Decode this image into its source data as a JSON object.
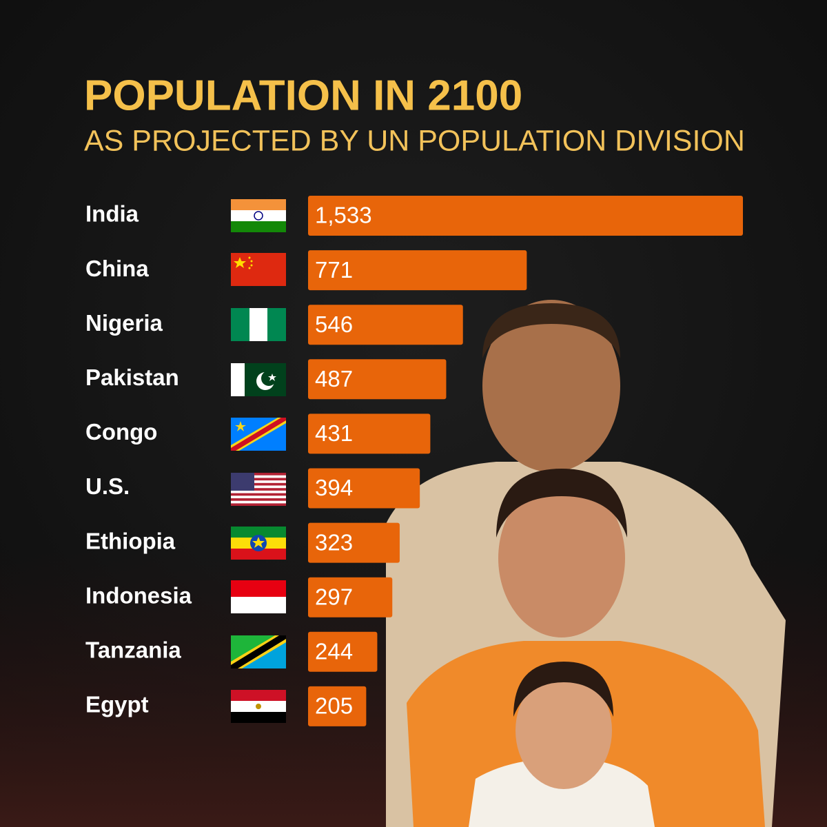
{
  "chart_data": {
    "type": "bar",
    "orientation": "horizontal",
    "title": "POPULATION IN 2100",
    "subtitle": "AS PROJECTED BY UN POPULATION DIVISION",
    "categories": [
      "India",
      "China",
      "Nigeria",
      "Pakistan",
      "Congo",
      "U.S.",
      "Ethiopia",
      "Indonesia",
      "Tanzania",
      "Egypt"
    ],
    "values": [
      1533,
      771,
      546,
      487,
      431,
      394,
      323,
      297,
      244,
      205
    ],
    "value_labels": [
      "1,533",
      "771",
      "546",
      "487",
      "431",
      "394",
      "323",
      "297",
      "244",
      "205"
    ],
    "color": "#e8650a"
  }
}
